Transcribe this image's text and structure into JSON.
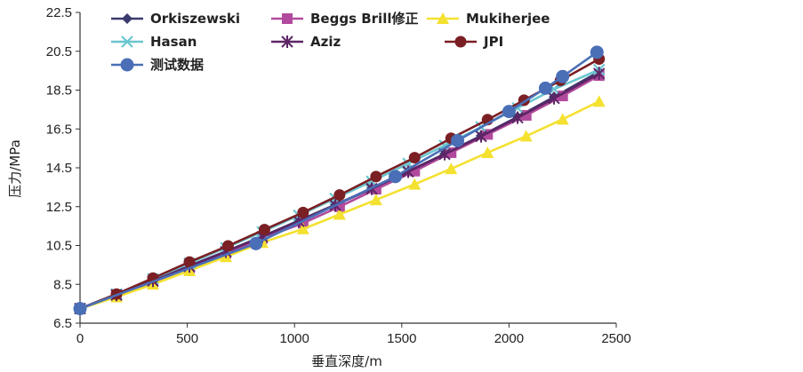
{
  "chart_data": {
    "type": "line",
    "title": "",
    "xlabel": "垂直深度/m",
    "ylabel": "压力/MPa",
    "xlim": [
      0,
      2500
    ],
    "ylim": [
      6.5,
      22.5
    ],
    "xticks": [
      "0",
      "500",
      "1000",
      "1500",
      "2000",
      "2500"
    ],
    "yticks": [
      "6.5",
      "8.5",
      "10.5",
      "12.5",
      "14.5",
      "16.5",
      "18.5",
      "20.5",
      "22.5"
    ],
    "grid": false,
    "legend": "top",
    "series": [
      {
        "name": "Orkiszewski",
        "color": "#3b3a6e",
        "marker": "diamond",
        "x": [
          0,
          170,
          340,
          510,
          680,
          850,
          1020,
          1190,
          1360,
          1530,
          1700,
          1870,
          2040,
          2210,
          2420
        ],
        "y": [
          7.25,
          7.95,
          8.7,
          9.45,
          10.2,
          10.97,
          11.78,
          12.6,
          13.45,
          14.32,
          15.22,
          16.15,
          17.12,
          18.15,
          19.45
        ]
      },
      {
        "name": "Beggs Brill修正",
        "color": "#b14a9c",
        "marker": "square",
        "x": [
          0,
          170,
          340,
          510,
          680,
          850,
          1040,
          1210,
          1380,
          1560,
          1730,
          1900,
          2080,
          2250,
          2420
        ],
        "y": [
          7.25,
          7.9,
          8.62,
          9.35,
          10.1,
          10.87,
          11.65,
          12.5,
          13.4,
          14.33,
          15.28,
          16.22,
          17.2,
          18.2,
          19.25
        ]
      },
      {
        "name": "Mukiherjee",
        "color": "#f4e130",
        "marker": "triangle",
        "x": [
          0,
          170,
          340,
          510,
          680,
          850,
          1040,
          1210,
          1380,
          1560,
          1730,
          1900,
          2080,
          2250,
          2420
        ],
        "y": [
          7.25,
          7.85,
          8.5,
          9.2,
          9.92,
          10.65,
          11.35,
          12.1,
          12.85,
          13.65,
          14.45,
          15.28,
          16.13,
          17.0,
          17.92
        ]
      },
      {
        "name": "Hasan",
        "color": "#6bc6cf",
        "marker": "x",
        "x": [
          0,
          170,
          340,
          510,
          680,
          850,
          1020,
          1190,
          1360,
          1530,
          1700,
          1870,
          2040,
          2210,
          2420
        ],
        "y": [
          7.25,
          8.0,
          8.78,
          9.58,
          10.38,
          11.2,
          12.05,
          12.92,
          13.8,
          14.72,
          15.65,
          16.6,
          17.58,
          18.55,
          19.55
        ]
      },
      {
        "name": "Aziz",
        "color": "#5d2566",
        "marker": "asterisk",
        "x": [
          0,
          170,
          340,
          510,
          680,
          850,
          1020,
          1190,
          1360,
          1530,
          1700,
          1870,
          2040,
          2210,
          2420
        ],
        "y": [
          7.25,
          7.95,
          8.68,
          9.42,
          10.18,
          10.95,
          11.75,
          12.57,
          13.42,
          14.3,
          15.2,
          16.12,
          17.08,
          18.08,
          19.35
        ]
      },
      {
        "name": "JPI",
        "color": "#7a1f24",
        "marker": "circle",
        "x": [
          0,
          170,
          340,
          510,
          690,
          860,
          1040,
          1210,
          1380,
          1560,
          1730,
          1900,
          2070,
          2240,
          2420
        ],
        "y": [
          7.25,
          8.0,
          8.82,
          9.65,
          10.48,
          11.32,
          12.2,
          13.1,
          14.05,
          15.02,
          16.02,
          16.98,
          17.98,
          19.0,
          20.1
        ]
      },
      {
        "name": "测试数据",
        "color": "#4a6fb7",
        "marker": "bigcircle",
        "x": [
          0,
          820,
          1470,
          1760,
          2000,
          2170,
          2250,
          2410
        ],
        "y": [
          7.25,
          10.6,
          14.05,
          15.9,
          17.4,
          18.6,
          19.2,
          20.45
        ]
      }
    ]
  }
}
